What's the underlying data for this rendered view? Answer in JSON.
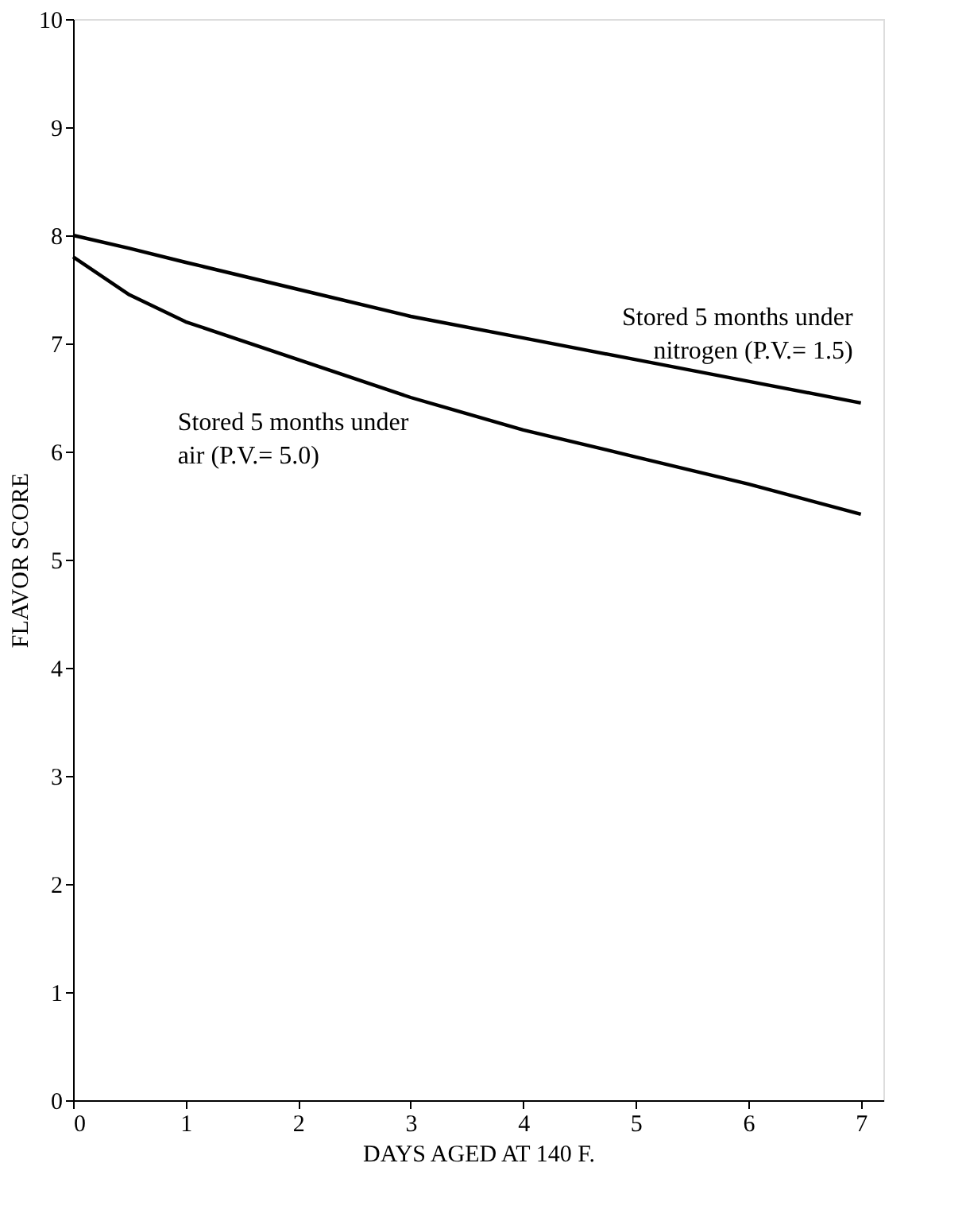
{
  "chart_data": {
    "type": "line",
    "xlabel": "DAYS AGED AT 140 F.",
    "ylabel": "FLAVOR SCORE",
    "x": [
      0,
      0.5,
      1,
      2,
      3,
      4,
      5,
      6,
      7
    ],
    "series": [
      {
        "name": "Stored 5 months under\nnitrogen (P.V.= 1.5)",
        "color": "#000000",
        "values": [
          8.0,
          7.88,
          7.75,
          7.5,
          7.25,
          7.05,
          6.85,
          6.65,
          6.45
        ]
      },
      {
        "name": "Stored 5 months under\nair (P.V.= 5.0)",
        "color": "#000000",
        "values": [
          7.8,
          7.45,
          7.2,
          6.85,
          6.5,
          6.2,
          5.95,
          5.7,
          5.42
        ]
      }
    ],
    "xlim": [
      0,
      7.2
    ],
    "ylim": [
      0,
      10
    ],
    "xticks": [
      0,
      1,
      2,
      3,
      4,
      5,
      6,
      7
    ],
    "yticks": [
      0,
      1,
      2,
      3,
      4,
      5,
      6,
      7,
      8,
      9,
      10
    ],
    "grid": false,
    "legend": false,
    "marker": "none",
    "line_style": "solid"
  }
}
